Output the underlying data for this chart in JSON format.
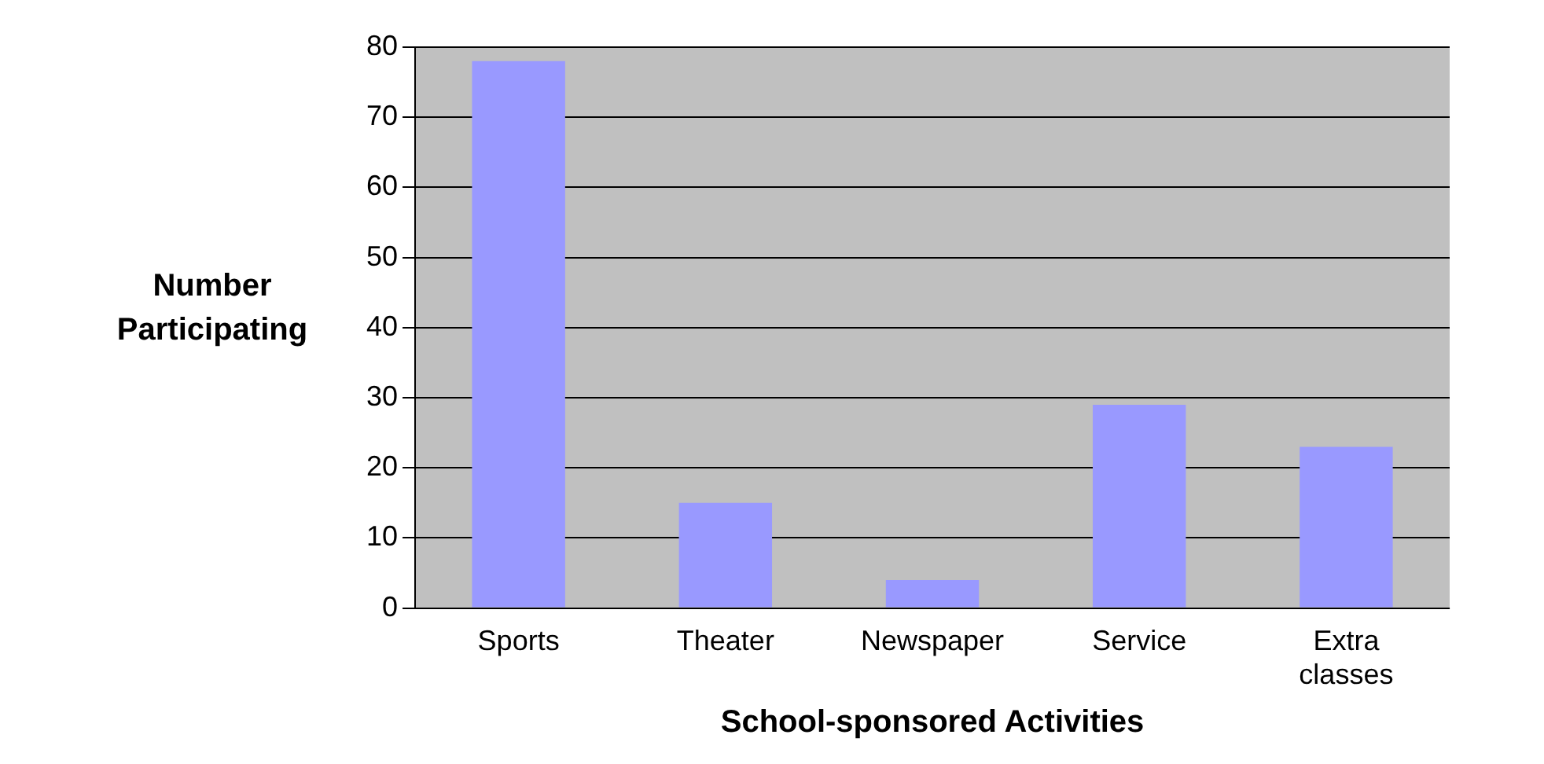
{
  "chart_data": {
    "type": "bar",
    "xlabel": "School-sponsored Activities",
    "ylabel": "Number Participating",
    "categories": [
      "Sports",
      "Theater",
      "Newspaper",
      "Service",
      "Extra classes"
    ],
    "values": [
      78,
      15,
      4,
      29,
      23
    ],
    "color": "#9999ff",
    "ylim": [
      0,
      80
    ],
    "yticks": [
      0,
      10,
      20,
      30,
      40,
      50,
      60,
      70,
      80
    ],
    "grid": "y"
  }
}
